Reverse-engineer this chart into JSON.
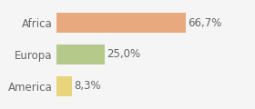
{
  "categories": [
    "Africa",
    "Europa",
    "America"
  ],
  "values": [
    66.7,
    25.0,
    8.3
  ],
  "labels": [
    "66,7%",
    "25,0%",
    "8,3%"
  ],
  "bar_colors": [
    "#e8a97e",
    "#b5c98a",
    "#e8d47a"
  ],
  "background_color": "#f5f5f5",
  "xlim": [
    0,
    100
  ],
  "bar_height": 0.65,
  "label_fontsize": 8.5,
  "tick_fontsize": 8.5
}
